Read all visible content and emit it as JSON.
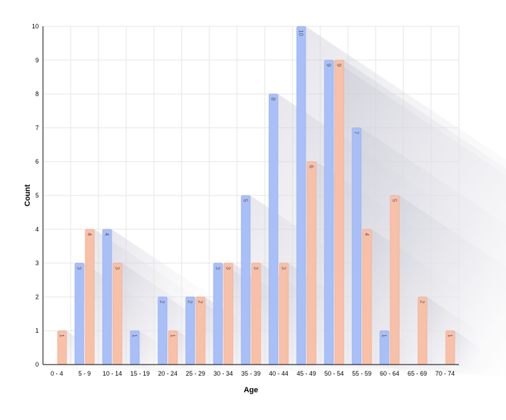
{
  "chart_data": {
    "type": "bar",
    "xlabel": "Age",
    "ylabel": "Count",
    "ylim": [
      0,
      10
    ],
    "yticks": [
      "0",
      "1",
      "2",
      "3",
      "4",
      "5",
      "6",
      "7",
      "8",
      "9",
      "10"
    ],
    "grid": true,
    "categories": [
      "0 - 4",
      "5 - 9",
      "10 - 14",
      "15 - 19",
      "20 - 24",
      "25 - 29",
      "30 - 34",
      "35 - 39",
      "40 - 44",
      "45 - 49",
      "50 - 54",
      "55 - 59",
      "60 - 64",
      "65 - 69",
      "70 - 74"
    ],
    "series": [
      {
        "values": [
          0,
          3,
          4,
          1,
          2,
          2,
          3,
          5,
          8,
          10,
          9,
          7,
          1,
          0,
          0
        ],
        "color": "#a9bff8"
      },
      {
        "values": [
          1,
          4,
          3,
          0,
          1,
          2,
          3,
          3,
          3,
          6,
          9,
          4,
          5,
          2,
          1
        ],
        "color": "#f9c0a8"
      }
    ]
  }
}
